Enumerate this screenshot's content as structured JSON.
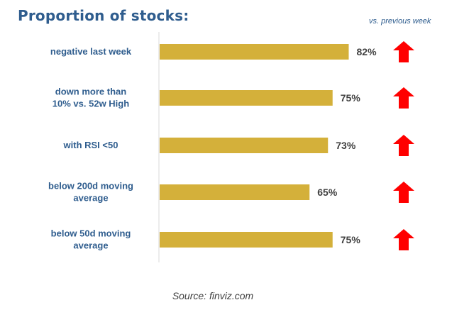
{
  "title": "Proportion of stocks:",
  "change_note": "vs. previous week",
  "source": "Source: finviz.com",
  "colors": {
    "title": "#2f5d8e",
    "category_label": "#2f5d8e",
    "bar": "#d4b03a",
    "value_label": "#404040",
    "arrow": "#ff0000",
    "axis": "#d9d9d9"
  },
  "chart_data": {
    "type": "bar",
    "orientation": "horizontal",
    "categories": [
      "negative last week",
      "down more than 10% vs. 52w High",
      "with RSI <50",
      "below 200d moving average",
      "below 50d moving average"
    ],
    "values": [
      82,
      75,
      73,
      65,
      75
    ],
    "value_labels": [
      "82%",
      "75%",
      "73%",
      "65%",
      "75%"
    ],
    "changes_vs_previous_week": [
      "up",
      "up",
      "up",
      "up",
      "up"
    ],
    "xlim": [
      0,
      100
    ],
    "grid": false,
    "legend": false
  }
}
